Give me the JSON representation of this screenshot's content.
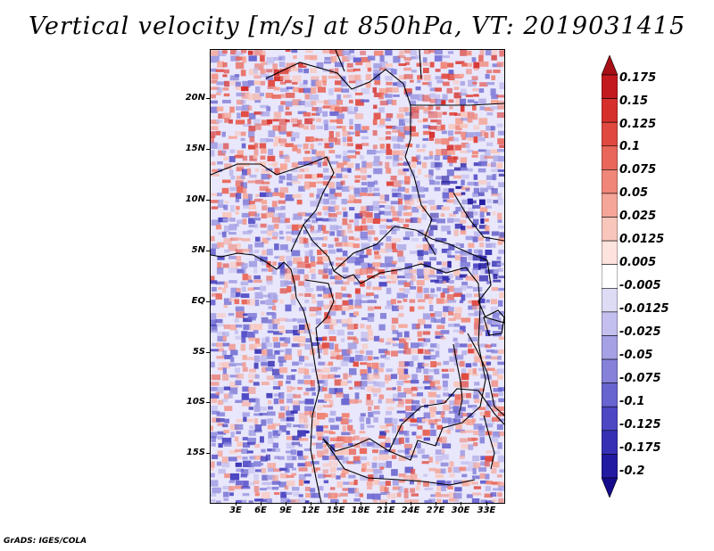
{
  "title": "Vertical velocity [m/s] at 850hPa, VT: 2019031415",
  "credit": "GrADS: IGES/COLA",
  "map": {
    "latitude_labels": [
      "20N",
      "15N",
      "10N",
      "5N",
      "EQ",
      "5S",
      "10S",
      "15S"
    ],
    "longitude_labels": [
      "3E",
      "6E",
      "9E",
      "12E",
      "15E",
      "18E",
      "21E",
      "24E",
      "27E",
      "30E",
      "33E"
    ],
    "lat_range": [
      -20,
      24
    ],
    "lon_range": [
      0,
      35
    ]
  },
  "colorbar": {
    "labels": [
      "0.175",
      "0.15",
      "0.125",
      "0.1",
      "0.075",
      "0.05",
      "0.025",
      "0.0125",
      "0.005",
      "-0.005",
      "-0.0125",
      "-0.025",
      "-0.05",
      "-0.075",
      "-0.1",
      "-0.125",
      "-0.175",
      "-0.2"
    ],
    "colors": [
      "#a50f15",
      "#c21a1f",
      "#d6302c",
      "#e0493f",
      "#e8675a",
      "#f08678",
      "#f5a698",
      "#f9c6bc",
      "#fde3dd",
      "#ffffff",
      "#dedcf5",
      "#c3bfee",
      "#a5a1e4",
      "#8682da",
      "#6864d0",
      "#4d47c4",
      "#3630b4",
      "#221aa0",
      "#140a8a"
    ]
  }
}
